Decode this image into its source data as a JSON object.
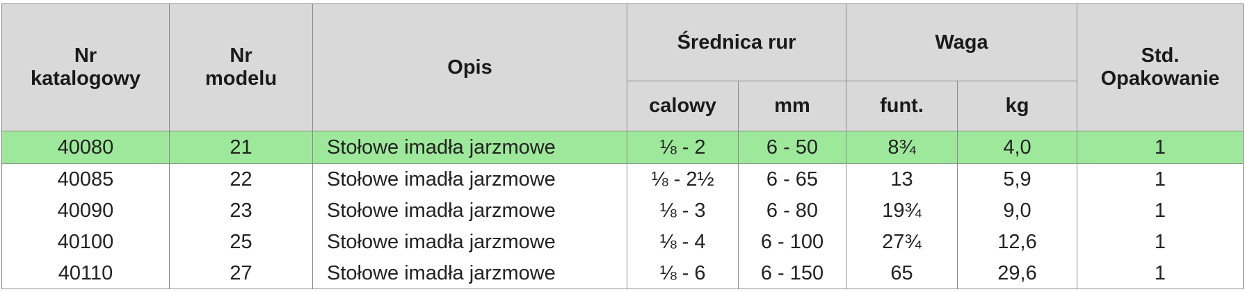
{
  "table": {
    "header": {
      "catalog": "Nr\nkatalogowy",
      "model": "Nr\nmodelu",
      "description": "Opis",
      "diameter": "Średnica rur",
      "diameter_inch": "calowy",
      "diameter_mm": "mm",
      "weight": "Waga",
      "weight_lb": "funt.",
      "weight_kg": "kg",
      "package": "Std.\nOpakowanie"
    },
    "rows": [
      [
        "40080",
        "21",
        "Stołowe imadła jarzmowe",
        "⅛ - 2",
        "6 - 50",
        "8¾",
        "4,0",
        "1"
      ],
      [
        "40085",
        "22",
        "Stołowe imadła jarzmowe",
        "⅛ - 2½",
        "6 - 65",
        "13",
        "5,9",
        "1"
      ],
      [
        "40090",
        "23",
        "Stołowe imadła jarzmowe",
        "⅛ - 3",
        "6 - 80",
        "19¾",
        "9,0",
        "1"
      ],
      [
        "40100",
        "25",
        "Stołowe imadła jarzmowe",
        "⅛ - 4",
        "6 - 100",
        "27¾",
        "12,6",
        "1"
      ],
      [
        "40110",
        "27",
        "Stołowe imadła jarzmowe",
        "⅛ - 6",
        "6 - 150",
        "65",
        "29,6",
        "1"
      ]
    ]
  }
}
